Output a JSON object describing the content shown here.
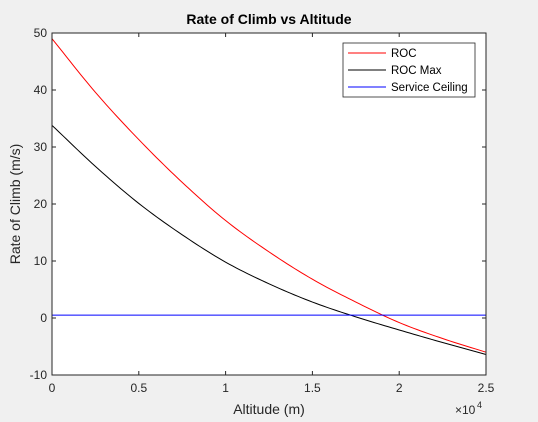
{
  "chart_data": {
    "type": "line",
    "title": "Rate of Climb vs Altitude",
    "xlabel": "Altitude (m)",
    "ylabel": "Rate of Climb (m/s)",
    "xlim": [
      0,
      25000
    ],
    "ylim": [
      -10,
      50
    ],
    "x_ticks": [
      0,
      5000,
      10000,
      15000,
      20000,
      25000
    ],
    "x_tick_labels": [
      "0",
      "0.5",
      "1",
      "1.5",
      "2",
      "2.5"
    ],
    "x_exponent_base": "×10",
    "x_exponent_power": "4",
    "y_ticks": [
      -10,
      0,
      10,
      20,
      30,
      40,
      50
    ],
    "y_tick_labels": [
      "-10",
      "0",
      "10",
      "20",
      "30",
      "40",
      "50"
    ],
    "grid": false,
    "legend_position": "top-right",
    "series": [
      {
        "name": "ROC",
        "color": "#ff0000",
        "x": [
          0,
          2500,
          5000,
          7500,
          10000,
          12500,
          15000,
          17500,
          20000,
          22500,
          25000
        ],
        "y": [
          49,
          39.6,
          31.3,
          23.8,
          17.1,
          11.6,
          6.8,
          2.8,
          -0.8,
          -3.6,
          -6.0
        ]
      },
      {
        "name": "ROC Max",
        "color": "#000000",
        "x": [
          0,
          2500,
          5000,
          7500,
          10000,
          12500,
          15000,
          17500,
          20000,
          22500,
          25000
        ],
        "y": [
          33.8,
          26.6,
          20.1,
          14.6,
          9.8,
          6.0,
          2.8,
          0.2,
          -2.1,
          -4.3,
          -6.4
        ]
      },
      {
        "name": "Service Ceiling",
        "color": "#0000ff",
        "x": [
          0,
          25000
        ],
        "y": [
          0.5,
          0.5
        ]
      }
    ]
  }
}
